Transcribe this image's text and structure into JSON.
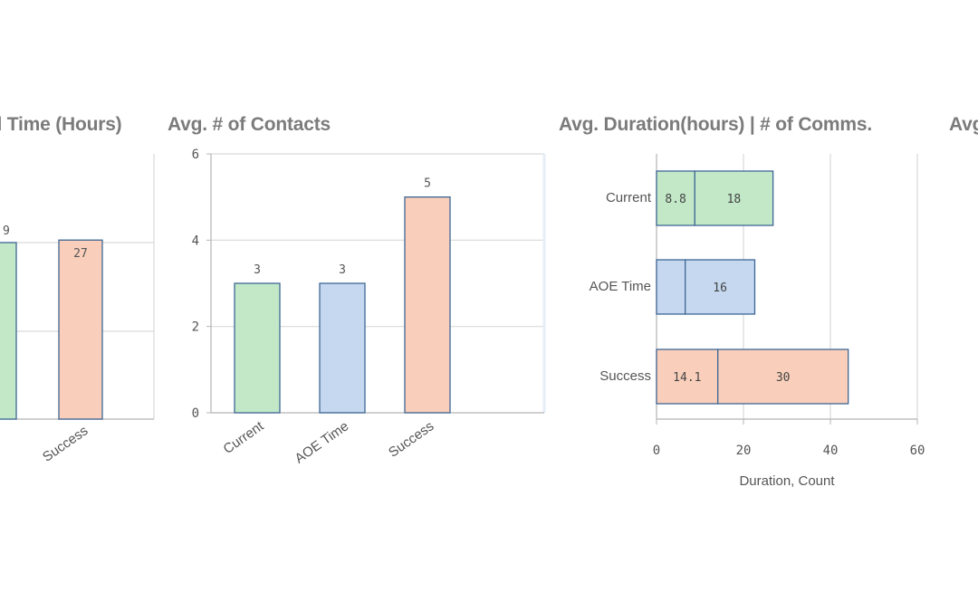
{
  "titles": {
    "chart1": "ed Time (Hours)",
    "chart2": "Avg. # of Contacts",
    "chart3": "Avg. Duration(hours) | # of Comms.",
    "chart4": "Avg"
  },
  "colors": {
    "Current": "#c2e8c8",
    "AOE Time": "#c5d8f0",
    "Success": "#f9cfbb",
    "bar_stroke": "#3e6694",
    "grid": "#d9d9d9",
    "axis": "#b5b5b5"
  },
  "chart_data": [
    {
      "type": "bar",
      "title": "ed Time (Hours)",
      "categories": [
        "Success"
      ],
      "values": [
        27
      ],
      "partial_labels": [
        "9"
      ],
      "note": "partially cropped at left edge"
    },
    {
      "type": "bar",
      "title": "Avg. # of Contacts",
      "categories": [
        "Current",
        "AOE Time",
        "Success"
      ],
      "values": [
        3,
        3,
        5
      ],
      "ylim": [
        0,
        6
      ],
      "yticks": [
        0,
        2,
        4,
        6
      ],
      "grid": true
    },
    {
      "type": "bar",
      "orientation": "horizontal",
      "stacked": true,
      "title": "Avg. Duration(hours) | # of Comms.",
      "categories": [
        "Current",
        "AOE Time",
        "Success"
      ],
      "series": [
        {
          "values": [
            8.8,
            6.6,
            14.1
          ],
          "labels": [
            "8.8",
            "",
            "14.1"
          ]
        },
        {
          "values": [
            18,
            16,
            30
          ],
          "labels": [
            "18",
            "16",
            "30"
          ]
        }
      ],
      "xlim": [
        0,
        60
      ],
      "xticks": [
        "0",
        "20",
        "40",
        "60"
      ],
      "xlabel": "Duration, Count",
      "grid": true
    }
  ]
}
